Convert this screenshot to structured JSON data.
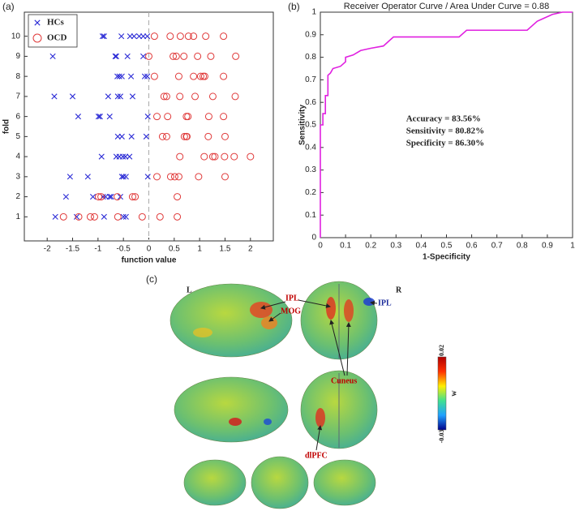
{
  "panel_labels": [
    "(a)",
    "(b)",
    "(c)"
  ],
  "chart_data": [
    {
      "type": "scatter",
      "xlabel": "function value",
      "ylabel": "fold",
      "xlim": [
        -2.45,
        2.45
      ],
      "ylim": [
        -0.2,
        11.2
      ],
      "xticks": [
        -2,
        -1.5,
        -1,
        -0.5,
        0,
        0.5,
        1,
        1.5,
        2
      ],
      "yticks": [
        1,
        2,
        3,
        4,
        5,
        6,
        7,
        8,
        9,
        10
      ],
      "vline": 0,
      "legend": "upper-left",
      "series": [
        {
          "name": "HCs",
          "color": "#2b2bd6",
          "marker": "x",
          "x": [
            -0.91,
            -0.88,
            -0.54,
            -0.37,
            -0.29,
            -0.19,
            -0.11,
            -0.03,
            -1.89,
            -0.66,
            -0.64,
            -0.42,
            -0.11,
            -0.62,
            -0.58,
            -0.53,
            -0.35,
            -0.08,
            -0.03,
            -1.86,
            -1.5,
            -0.8,
            -0.61,
            -0.56,
            -0.32,
            -1.39,
            -0.99,
            -0.96,
            -0.77,
            -0.02,
            -0.61,
            -0.53,
            -0.34,
            -0.05,
            -0.93,
            -0.64,
            -0.58,
            -0.51,
            -0.46,
            -0.38,
            -1.55,
            -1.2,
            -0.53,
            -0.5,
            -0.45,
            -0.02,
            -1.63,
            -1.1,
            -0.9,
            -0.85,
            -0.77,
            -0.74,
            -0.56,
            -1.84,
            -1.42,
            -0.88,
            -0.5,
            -0.45
          ],
          "y": [
            10,
            10,
            10,
            10,
            10,
            10,
            10,
            10,
            9,
            9,
            9,
            9,
            9,
            8,
            8,
            8,
            8,
            8,
            8,
            7,
            7,
            7,
            7,
            7,
            7,
            6,
            6,
            6,
            6,
            6,
            5,
            5,
            5,
            5,
            4,
            4,
            4,
            4,
            4,
            4,
            3,
            3,
            3,
            3,
            3,
            3,
            2,
            2,
            2,
            2,
            2,
            2,
            2,
            1,
            1,
            1,
            1,
            1
          ]
        },
        {
          "name": "OCD",
          "color": "#e03a3a",
          "marker": "o",
          "x": [
            0.11,
            0.42,
            0.62,
            0.78,
            0.88,
            1.12,
            1.47,
            0.0,
            0.48,
            0.54,
            0.69,
            0.96,
            1.22,
            1.71,
            0.11,
            0.59,
            0.88,
            1.02,
            1.07,
            1.1,
            1.47,
            0.3,
            0.35,
            0.61,
            0.91,
            1.26,
            1.7,
            0.16,
            0.37,
            0.74,
            0.77,
            1.18,
            1.47,
            0.27,
            0.35,
            0.7,
            0.74,
            0.75,
            1.17,
            1.5,
            0.61,
            1.09,
            1.26,
            1.3,
            1.49,
            1.68,
            2.0,
            0.16,
            0.43,
            0.51,
            0.59,
            0.98,
            1.5,
            -0.99,
            -0.94,
            -0.62,
            -0.32,
            -0.27,
            0.56,
            -1.68,
            -1.38,
            -1.15,
            -1.07,
            -0.61,
            -0.13,
            0.22,
            0.56
          ],
          "y": [
            10,
            10,
            10,
            10,
            10,
            10,
            10,
            9,
            9,
            9,
            9,
            9,
            9,
            9,
            8,
            8,
            8,
            8,
            8,
            8,
            8,
            7,
            7,
            7,
            7,
            7,
            7,
            6,
            6,
            6,
            6,
            6,
            6,
            5,
            5,
            5,
            5,
            5,
            5,
            5,
            4,
            4,
            4,
            4,
            4,
            4,
            4,
            3,
            3,
            3,
            3,
            3,
            3,
            2,
            2,
            2,
            2,
            2,
            2,
            1,
            1,
            1,
            1,
            1,
            1,
            1,
            1
          ]
        }
      ]
    },
    {
      "type": "line",
      "title": "Receiver Operator Curve / Area Under Curve = 0.88",
      "xlabel": "1-Specificity",
      "ylabel": "Sensitivity",
      "xlim": [
        0,
        1
      ],
      "ylim": [
        0,
        1
      ],
      "xticks": [
        0,
        0.1,
        0.2,
        0.3,
        0.4,
        0.5,
        0.6,
        0.7,
        0.8,
        0.9,
        1
      ],
      "yticks": [
        0,
        0.1,
        0.2,
        0.3,
        0.4,
        0.5,
        0.6,
        0.7,
        0.8,
        0.9,
        1
      ],
      "annotations": [
        "Accuracy = 83.56%",
        "Sensitivity = 80.82%",
        "Specificity = 86.30%"
      ],
      "series": [
        {
          "color": "#e020e0",
          "x": [
            0,
            0,
            0.01,
            0.01,
            0.02,
            0.02,
            0.03,
            0.03,
            0.04,
            0.05,
            0.08,
            0.1,
            0.1,
            0.13,
            0.16,
            0.2,
            0.25,
            0.27,
            0.29,
            0.55,
            0.58,
            0.82,
            0.84,
            0.86,
            0.88,
            0.92,
            0.96,
            1
          ],
          "y": [
            0,
            0.5,
            0.5,
            0.55,
            0.55,
            0.63,
            0.63,
            0.72,
            0.73,
            0.75,
            0.76,
            0.78,
            0.8,
            0.81,
            0.83,
            0.84,
            0.85,
            0.87,
            0.89,
            0.89,
            0.92,
            0.92,
            0.94,
            0.96,
            0.97,
            0.99,
            1,
            1
          ]
        }
      ]
    }
  ],
  "brain": {
    "side_labels": [
      "L",
      "R"
    ],
    "regions": [
      "IPL",
      "MOG",
      "IPL",
      "Cuneus",
      "dlPFC"
    ],
    "colorbar": {
      "lim": [
        -0.03,
        0.02
      ],
      "label": "w"
    }
  }
}
